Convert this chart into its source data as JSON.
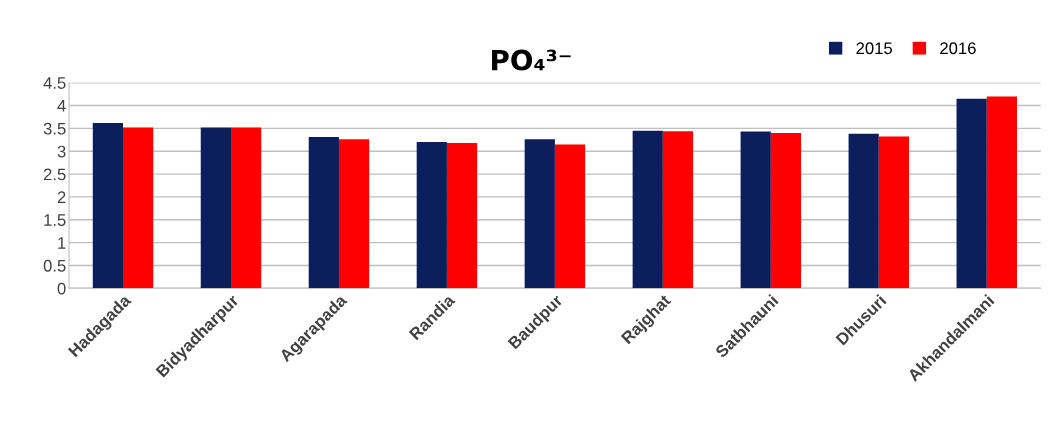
{
  "chart_data": {
    "type": "bar",
    "title": "PO₄³⁻",
    "categories": [
      "Hadagada",
      "Bidyadharpur",
      "Agarapada",
      "Randia",
      "Baudpur",
      "Rajghat",
      "Satbhauni",
      "Dhusuri",
      "Akhandalmani"
    ],
    "series": [
      {
        "name": "2015",
        "color": "#0c1f5c",
        "values": [
          3.62,
          3.52,
          3.31,
          3.2,
          3.26,
          3.45,
          3.43,
          3.38,
          4.15
        ]
      },
      {
        "name": "2016",
        "color": "#ff0000",
        "values": [
          3.52,
          3.52,
          3.26,
          3.18,
          3.15,
          3.44,
          3.4,
          3.32,
          4.2
        ]
      }
    ],
    "ylim": [
      0,
      4.5
    ],
    "yticks": [
      0,
      0.5,
      1,
      1.5,
      2,
      2.5,
      3,
      3.5,
      4,
      4.5
    ],
    "grid": "y",
    "legend": "top right"
  }
}
